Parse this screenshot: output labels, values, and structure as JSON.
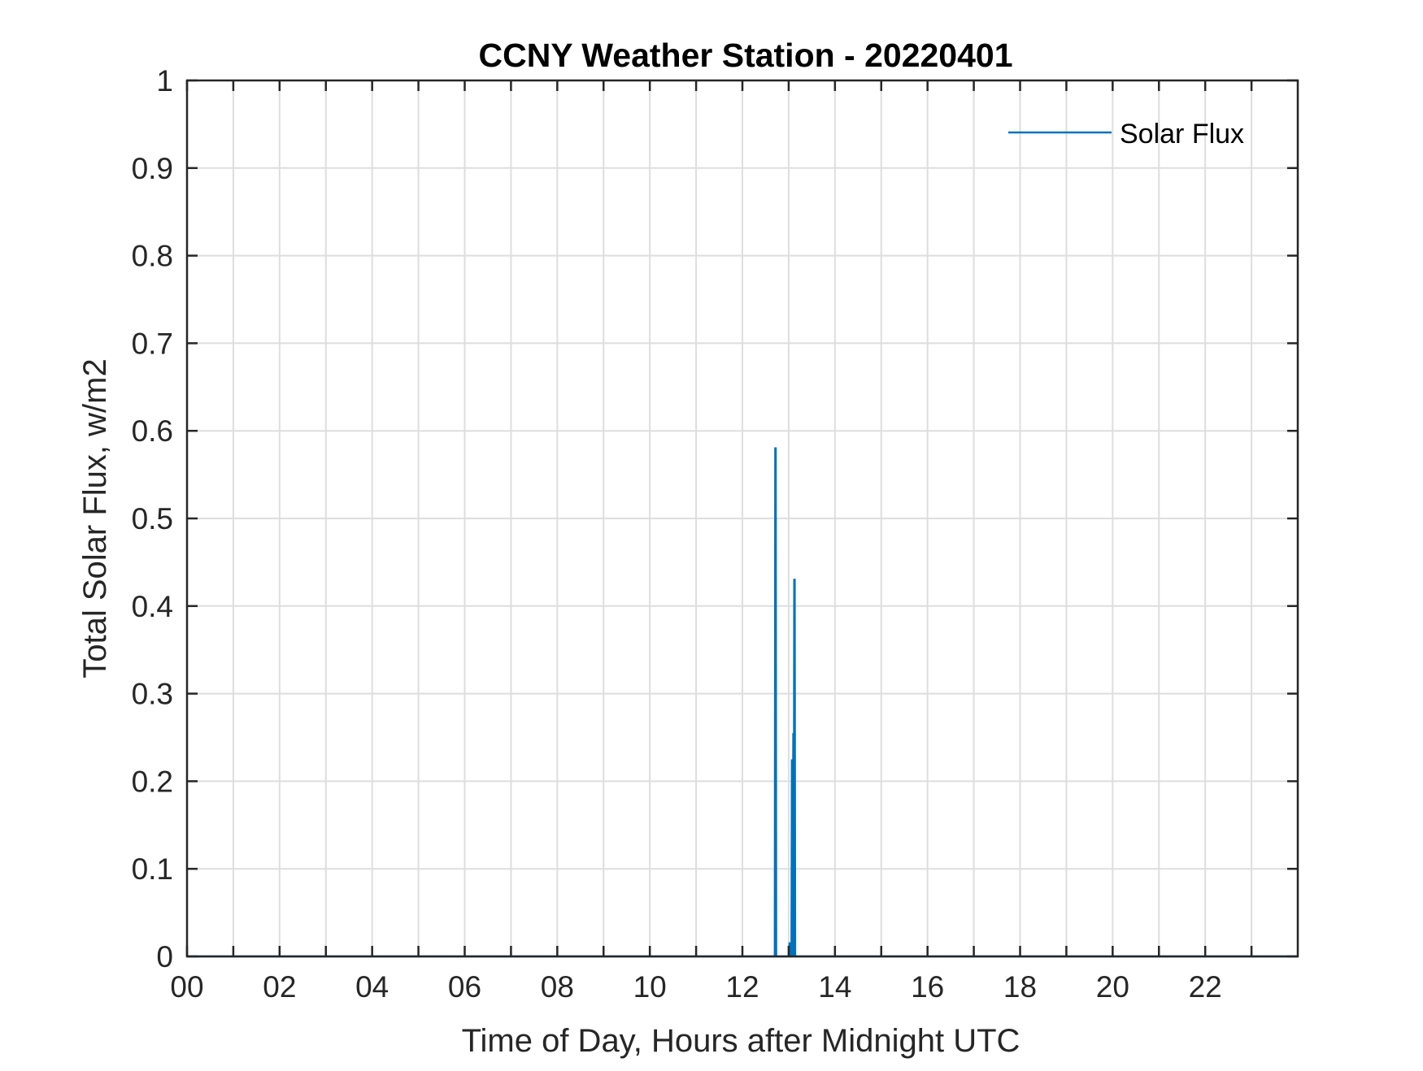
{
  "chart_data": {
    "type": "line",
    "title": "CCNY Weather Station - 20220401",
    "xlabel": "Time of Day, Hours after Midnight UTC",
    "ylabel": "Total Solar Flux, w/m2",
    "xlim": [
      0,
      24
    ],
    "ylim": [
      0,
      1
    ],
    "x_ticks": [
      0,
      2,
      4,
      6,
      8,
      10,
      12,
      14,
      16,
      18,
      20,
      22
    ],
    "x_tick_labels": [
      "00",
      "02",
      "04",
      "06",
      "08",
      "10",
      "12",
      "14",
      "16",
      "18",
      "20",
      "22"
    ],
    "x_minor_ticks": [
      1,
      3,
      5,
      7,
      9,
      11,
      13,
      15,
      17,
      19,
      21,
      23
    ],
    "y_ticks": [
      0,
      0.1,
      0.2,
      0.3,
      0.4,
      0.5,
      0.6,
      0.7,
      0.8,
      0.9,
      1
    ],
    "y_tick_labels": [
      "0",
      "0.1",
      "0.2",
      "0.3",
      "0.4",
      "0.5",
      "0.6",
      "0.7",
      "0.8",
      "0.9",
      "1"
    ],
    "grid": true,
    "legend_position": "top-right",
    "series": [
      {
        "name": "Solar Flux",
        "color": "#0072bd",
        "x": [
          0,
          12.7,
          12.71,
          12.72,
          12.73,
          13.0,
          13.02,
          13.03,
          13.04,
          13.06,
          13.07,
          13.08,
          13.1,
          13.11,
          13.12,
          13.13,
          13.14,
          24
        ],
        "y": [
          0,
          0,
          0.58,
          0.58,
          0,
          0,
          0.015,
          0.015,
          0,
          0,
          0.225,
          0,
          0.255,
          0,
          0.43,
          0.43,
          0,
          0
        ]
      }
    ]
  }
}
